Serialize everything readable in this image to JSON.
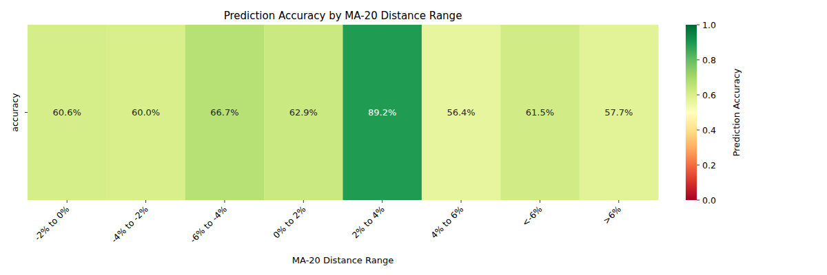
{
  "chart_data": {
    "type": "heatmap",
    "title": "Prediction Accuracy by MA-20 Distance Range",
    "x_label": "MA-20 Distance Range",
    "categories": [
      "-2% to 0%",
      "-4% to -2%",
      "-6% to -4%",
      "0% to 2%",
      "2% to 4%",
      "4% to 6%",
      "<-6%",
      ">6%"
    ],
    "rows": [
      "accuracy"
    ],
    "cells": [
      [
        0.606,
        0.6,
        0.667,
        0.629,
        0.892,
        0.564,
        0.615,
        0.577
      ]
    ],
    "value_labels": [
      [
        "60.6%",
        "60.0%",
        "66.7%",
        "62.9%",
        "89.2%",
        "56.4%",
        "61.5%",
        "57.7%"
      ]
    ],
    "data_labels": true,
    "color": "RdYlGn",
    "colorbar": {
      "label": "Prediction Accuracy",
      "range": [
        0,
        1
      ],
      "ticks": [
        {
          "value": 0,
          "label": "0.0"
        },
        0.2,
        0.4,
        0.6,
        0.8,
        {
          "value": 1,
          "label": "1.0"
        }
      ]
    }
  }
}
